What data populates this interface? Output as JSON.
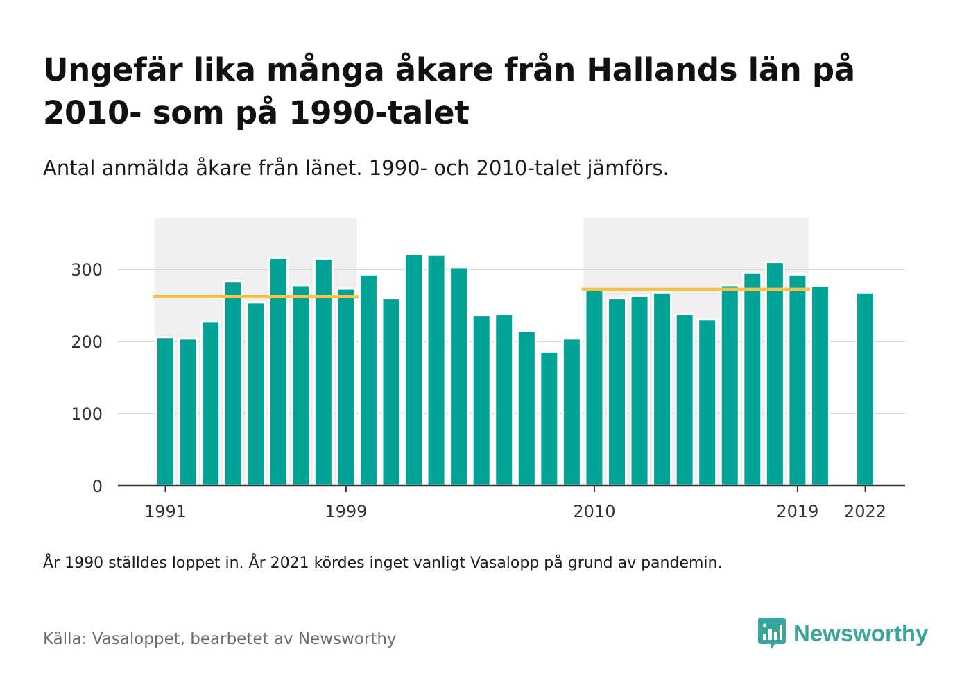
{
  "header": {
    "title": "Ungefär lika många åkare från Hallands län på 2010- som på 1990-talet",
    "subtitle": "Antal anmälda åkare från länet. 1990- och 2010-talet jämförs."
  },
  "footer": {
    "note": "År 1990 ställdes loppet in. År 2021 kördes inget vanligt Vasalopp på grund av pandemin.",
    "source": "Källa: Vasaloppet, bearbetet av Newsworthy",
    "logo_text": "Newsworthy"
  },
  "colors": {
    "bar": "#00a396",
    "average_line": "#f5c24e",
    "decade_shade": "#efefef",
    "gridline": "#d9d9d9",
    "axis": "#333333",
    "logo": "#3aa59b"
  },
  "chart_data": {
    "type": "bar",
    "ylim": [
      0,
      375
    ],
    "yticks": [
      0,
      100,
      200,
      300
    ],
    "xticks": [
      1991,
      1999,
      2010,
      2019,
      2022
    ],
    "grid": true,
    "x": [
      1991,
      1992,
      1993,
      1994,
      1995,
      1996,
      1997,
      1998,
      1999,
      2000,
      2001,
      2002,
      2003,
      2004,
      2005,
      2006,
      2007,
      2008,
      2009,
      2010,
      2011,
      2012,
      2013,
      2014,
      2015,
      2016,
      2017,
      2018,
      2019,
      2020,
      2021,
      2022
    ],
    "values": [
      206,
      204,
      228,
      283,
      254,
      316,
      278,
      315,
      273,
      293,
      260,
      321,
      320,
      303,
      236,
      238,
      214,
      186,
      204,
      271,
      260,
      263,
      268,
      238,
      231,
      278,
      295,
      310,
      293,
      277,
      null,
      268
    ],
    "shaded_periods": [
      {
        "start": 1991,
        "end": 1999
      },
      {
        "start": 2010,
        "end": 2019
      }
    ],
    "averages": [
      {
        "start": 1991,
        "end": 1999,
        "value": 262
      },
      {
        "start": 2010,
        "end": 2019,
        "value": 272
      }
    ]
  }
}
